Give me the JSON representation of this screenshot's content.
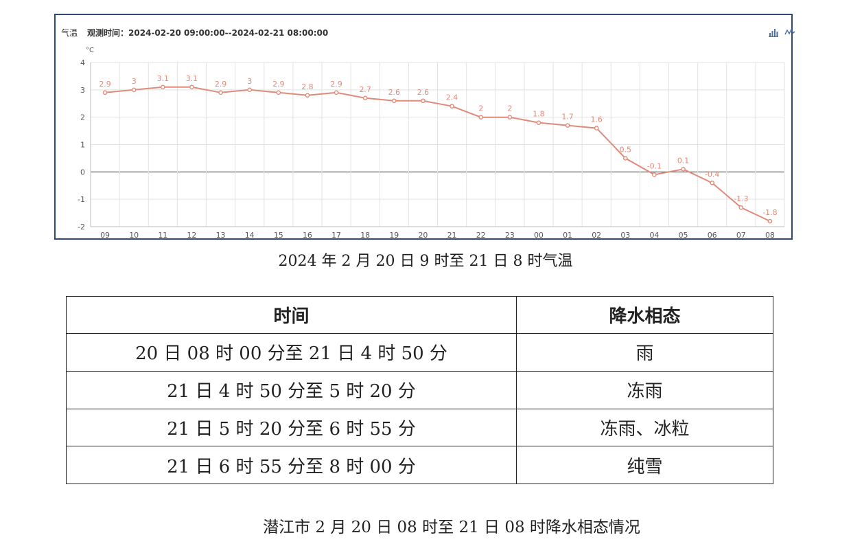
{
  "panel": {
    "element": "气温",
    "obs_label": "观测时间：",
    "obs_range": "2024-02-20 09:00:00--2024-02-21 08:00:00",
    "bar_icon": "bar-chart-icon",
    "line_icon": "line-chart-icon"
  },
  "chart_data": {
    "type": "line",
    "unit": "°C",
    "categories": [
      "09",
      "10",
      "11",
      "12",
      "13",
      "14",
      "15",
      "16",
      "17",
      "18",
      "19",
      "20",
      "21",
      "22",
      "23",
      "00",
      "01",
      "02",
      "03",
      "04",
      "05",
      "06",
      "07",
      "08"
    ],
    "series": [
      {
        "values": [
          2.9,
          3,
          3.1,
          3.1,
          2.9,
          3,
          2.9,
          2.8,
          2.9,
          2.7,
          2.6,
          2.6,
          2.4,
          2,
          2,
          1.8,
          1.7,
          1.6,
          0.5,
          -0.1,
          0.1,
          -0.4,
          -1.3,
          -1.8
        ]
      }
    ],
    "ylim": [
      -2,
      4
    ],
    "yticks": [
      -2,
      -1,
      0,
      1,
      2,
      3,
      4
    ],
    "grid": true,
    "data_labels": true,
    "line_color": "#e08a7a",
    "zero_line_color": "#555555"
  },
  "chart_caption": "2024 年 2 月 20 日 9 时至 21 日 8 时气温",
  "table": {
    "headers": [
      "时间",
      "降水相态"
    ],
    "rows": [
      [
        "20 日 08 时 00 分至 21 日 4 时 50 分",
        "雨"
      ],
      [
        "21 日 4 时 50 分至 5 时 20 分",
        "冻雨"
      ],
      [
        "21 日 5 时 20 分至 6 时 55 分",
        "冻雨、冰粒"
      ],
      [
        "21 日 6 时 55 分至 8 时 00 分",
        "纯雪"
      ]
    ]
  },
  "table_caption": "潜江市 2 月 20 日 08 时至 21 日 08 时降水相态情况"
}
